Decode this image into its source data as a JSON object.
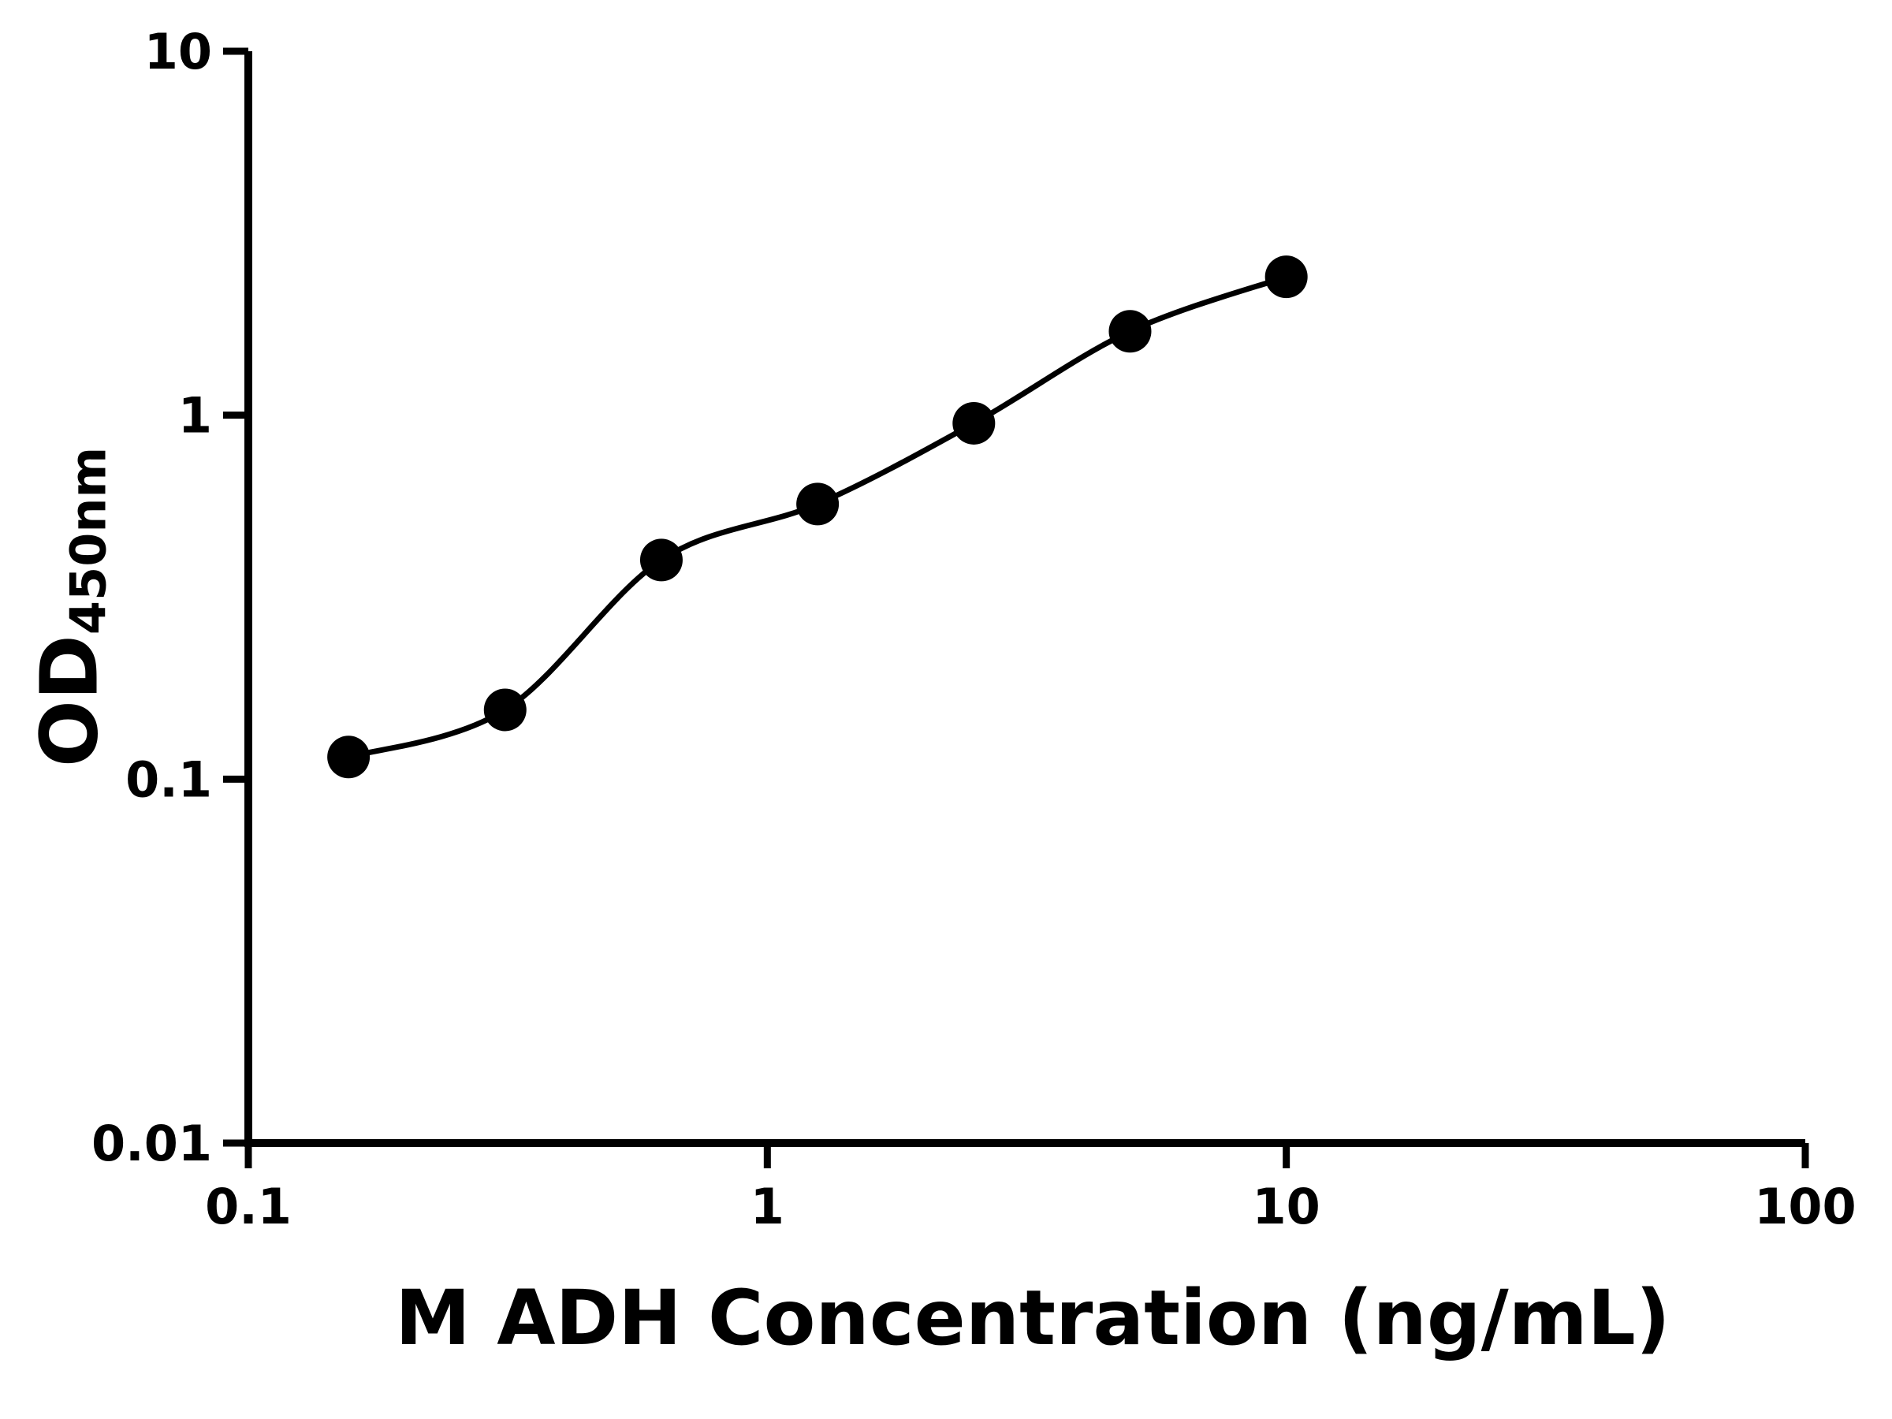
{
  "chart_data": {
    "type": "scatter",
    "title": "",
    "xlabel": "M ADH Concentration (ng/mL)",
    "ylabel_main": "OD",
    "ylabel_sub": "450nm",
    "x_scale": "log",
    "y_scale": "log",
    "xlim": [
      0.1,
      100
    ],
    "ylim": [
      0.01,
      10
    ],
    "x_ticks": [
      0.1,
      1,
      10,
      100
    ],
    "x_tick_labels": [
      "0.1",
      "1",
      "10",
      "100"
    ],
    "y_ticks": [
      0.01,
      0.1,
      1,
      10
    ],
    "y_tick_labels": [
      "0.01",
      "0.1",
      "1",
      "10"
    ],
    "grid": false,
    "legend": "none",
    "marker_color": "#000000",
    "line_color": "#000000",
    "axis_color": "#000000",
    "background_color": "#ffffff",
    "curve": "fitted smooth curve through standards (4PL-style fit)",
    "points": [
      {
        "x": 0.156,
        "y": 0.115
      },
      {
        "x": 0.3125,
        "y": 0.155
      },
      {
        "x": 0.625,
        "y": 0.4
      },
      {
        "x": 1.25,
        "y": 0.57
      },
      {
        "x": 2.5,
        "y": 0.95
      },
      {
        "x": 5,
        "y": 1.7
      },
      {
        "x": 10,
        "y": 2.4
      }
    ]
  }
}
